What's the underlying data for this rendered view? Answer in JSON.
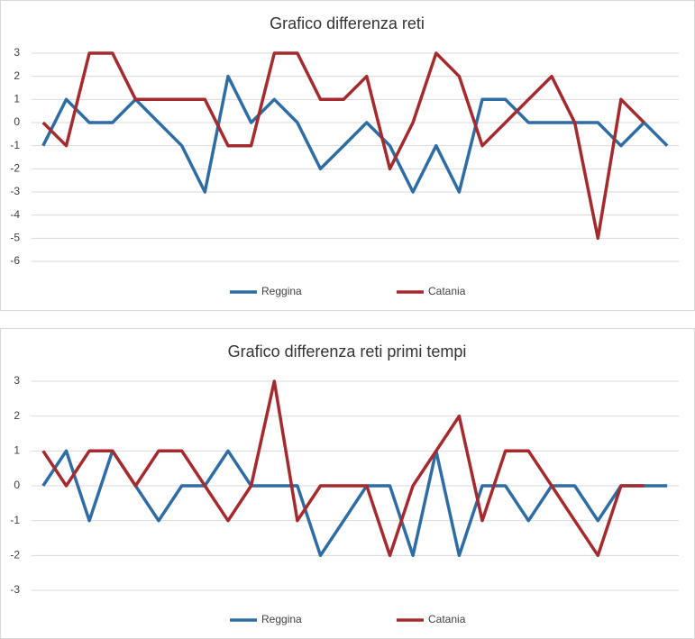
{
  "chart_data": [
    {
      "type": "line",
      "title": "Grafico differenza reti",
      "categories": [
        null,
        null,
        null,
        null,
        null,
        null,
        null,
        null,
        null,
        null,
        null,
        null,
        null,
        null,
        null,
        null,
        null,
        null,
        null,
        null,
        null,
        null,
        null,
        null,
        null,
        null,
        null,
        null
      ],
      "series": [
        {
          "name": "Reggina",
          "color": "#2e6ca4",
          "values": [
            -1,
            1,
            0,
            0,
            1,
            0,
            -1,
            -3,
            2,
            0,
            1,
            0,
            -2,
            -1,
            0,
            -1,
            -3,
            -1,
            -3,
            1,
            1,
            0,
            0,
            0,
            0,
            -1,
            0,
            -1
          ]
        },
        {
          "name": "Catania",
          "color": "#a52a2d",
          "values": [
            0,
            -1,
            3,
            3,
            1,
            1,
            1,
            1,
            -1,
            -1,
            3,
            3,
            1,
            1,
            2,
            -2,
            0,
            3,
            2,
            -1,
            0,
            1,
            2,
            0,
            -5,
            1,
            0,
            null
          ]
        }
      ],
      "ylim": [
        -6,
        3
      ],
      "yticks": [
        3,
        2,
        1,
        0,
        -1,
        -2,
        -3,
        -4,
        -5,
        -6
      ],
      "grid": true,
      "legend": "bottom"
    },
    {
      "type": "line",
      "title": "Grafico differenza reti primi tempi",
      "categories": [
        null,
        null,
        null,
        null,
        null,
        null,
        null,
        null,
        null,
        null,
        null,
        null,
        null,
        null,
        null,
        null,
        null,
        null,
        null,
        null,
        null,
        null,
        null,
        null,
        null,
        null,
        null,
        null
      ],
      "series": [
        {
          "name": "Reggina",
          "color": "#2e6ca4",
          "values": [
            0,
            1,
            -1,
            1,
            0,
            -1,
            0,
            0,
            1,
            0,
            0,
            0,
            -2,
            -1,
            0,
            0,
            -2,
            1,
            -2,
            0,
            0,
            -1,
            0,
            0,
            -1,
            0,
            0,
            0
          ]
        },
        {
          "name": "Catania",
          "color": "#a52a2d",
          "values": [
            1,
            0,
            1,
            1,
            0,
            1,
            1,
            0,
            -1,
            0,
            3,
            -1,
            0,
            0,
            0,
            -2,
            0,
            1,
            2,
            -1,
            1,
            1,
            0,
            -1,
            -2,
            0,
            0,
            null
          ]
        }
      ],
      "ylim": [
        -3,
        3
      ],
      "yticks": [
        3,
        2,
        1,
        0,
        -1,
        -2,
        -3
      ],
      "grid": true,
      "legend": "bottom"
    }
  ]
}
